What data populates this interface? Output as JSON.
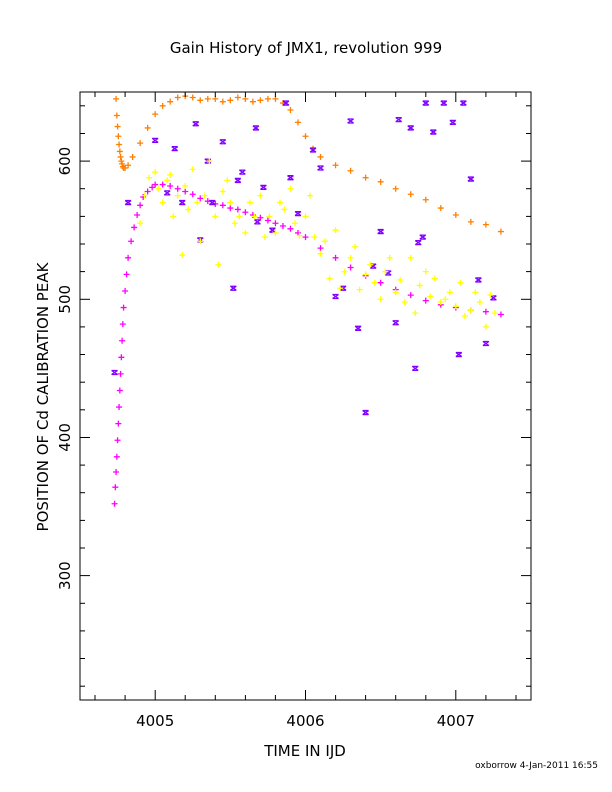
{
  "chart_data": {
    "type": "scatter",
    "title": "Gain History of JMX1, revolution 999",
    "xlabel": "TIME IN IJD",
    "ylabel": "POSITION OF Cd CALIBRATION PEAK",
    "xlim": [
      4004.5,
      4007.5
    ],
    "ylim": [
      210,
      650
    ],
    "xticks": [
      4005,
      4006,
      4007
    ],
    "xtick_labels": [
      "4005",
      "4006",
      "4007"
    ],
    "yticks": [
      300,
      400,
      500,
      600
    ],
    "ytick_labels": [
      "300",
      "400",
      "500",
      "600"
    ],
    "footer": "oxborrow  4-Jan-2011 16:55",
    "series": [
      {
        "marker": "+",
        "color": "#ff8000",
        "x": [
          4004.74,
          4004.745,
          4004.75,
          4004.755,
          4004.76,
          4004.765,
          4004.77,
          4004.775,
          4004.78,
          4004.785,
          4004.79,
          4004.8,
          4004.82,
          4004.85,
          4004.9,
          4004.95,
          4005.0,
          4005.05,
          4005.1,
          4005.15,
          4005.2,
          4005.25,
          4005.3,
          4005.35,
          4005.4,
          4005.45,
          4005.5,
          4005.55,
          4005.6,
          4005.65,
          4005.7,
          4005.75,
          4005.8,
          4005.85,
          4005.9,
          4005.95,
          4006.0,
          4006.05,
          4006.1,
          4006.2,
          4006.3,
          4006.4,
          4006.5,
          4006.6,
          4006.7,
          4006.8,
          4006.9,
          4007.0,
          4007.1,
          4007.2,
          4007.3
        ],
        "y": [
          645,
          633,
          625,
          618,
          612,
          607,
          603,
          600,
          598,
          596,
          595,
          595,
          597,
          603,
          613,
          624,
          634,
          640,
          643,
          646,
          647,
          646,
          644,
          645,
          645,
          643,
          644,
          646,
          645,
          643,
          644,
          645,
          645,
          642,
          637,
          628,
          618,
          609,
          603,
          597,
          593,
          588,
          585,
          580,
          576,
          572,
          566,
          561,
          556,
          554,
          549
        ]
      },
      {
        "marker": "+",
        "color": "#ff00ff",
        "x": [
          4004.73,
          4004.735,
          4004.74,
          4004.745,
          4004.75,
          4004.755,
          4004.76,
          4004.765,
          4004.77,
          4004.775,
          4004.78,
          4004.785,
          4004.79,
          4004.8,
          4004.81,
          4004.82,
          4004.84,
          4004.86,
          4004.88,
          4004.9,
          4004.92,
          4004.95,
          4004.98,
          4005.0,
          4005.05,
          4005.1,
          4005.15,
          4005.2,
          4005.25,
          4005.3,
          4005.35,
          4005.4,
          4005.45,
          4005.5,
          4005.55,
          4005.6,
          4005.65,
          4005.7,
          4005.75,
          4005.8,
          4005.85,
          4005.9,
          4005.95,
          4006.0,
          4006.1,
          4006.2,
          4006.3,
          4006.4,
          4006.5,
          4006.6,
          4006.7,
          4006.8,
          4006.9,
          4007.0,
          4007.1,
          4007.2,
          4007.3
        ],
        "y": [
          352,
          364,
          375,
          386,
          398,
          410,
          422,
          434,
          446,
          458,
          470,
          482,
          494,
          506,
          518,
          530,
          542,
          552,
          561,
          568,
          574,
          578,
          581,
          583,
          583,
          582,
          580,
          578,
          576,
          573,
          571,
          569,
          568,
          566,
          565,
          563,
          561,
          559,
          557,
          555,
          553,
          551,
          548,
          545,
          537,
          530,
          523,
          517,
          512,
          507,
          503,
          499,
          496,
          494,
          492,
          491,
          489
        ]
      },
      {
        "marker": "x",
        "color": "#8000ff",
        "x": [
          4004.73,
          4004.82,
          4005.0,
          4005.08,
          4005.13,
          4005.18,
          4005.27,
          4005.3,
          4005.35,
          4005.38,
          4005.45,
          4005.52,
          4005.55,
          4005.58,
          4005.67,
          4005.68,
          4005.72,
          4005.78,
          4005.87,
          4005.9,
          4005.95,
          4006.05,
          4006.1,
          4006.2,
          4006.25,
          4006.3,
          4006.35,
          4006.4,
          4006.45,
          4006.5,
          4006.55,
          4006.6,
          4006.62,
          4006.7,
          4006.73,
          4006.75,
          4006.78,
          4006.8,
          4006.85,
          4006.92,
          4006.98,
          4007.02,
          4007.05,
          4007.1,
          4007.15,
          4007.2,
          4007.25
        ],
        "y": [
          447,
          570,
          615,
          577,
          609,
          570,
          627,
          543,
          600,
          570,
          614,
          508,
          586,
          592,
          624,
          556,
          581,
          550,
          642,
          588,
          562,
          608,
          595,
          502,
          508,
          629,
          479,
          418,
          524,
          549,
          519,
          483,
          630,
          624,
          450,
          541,
          545,
          642,
          621,
          642,
          628,
          460,
          642,
          587,
          514,
          468,
          501
        ]
      },
      {
        "marker": "+",
        "color": "#ffff00",
        "x": [
          4004.9,
          4004.93,
          4004.96,
          4005.0,
          4005.02,
          4005.05,
          4005.08,
          4005.1,
          4005.12,
          4005.15,
          4005.18,
          4005.2,
          4005.22,
          4005.25,
          4005.28,
          4005.3,
          4005.33,
          4005.36,
          4005.4,
          4005.42,
          4005.45,
          4005.48,
          4005.5,
          4005.53,
          4005.56,
          4005.6,
          4005.63,
          4005.66,
          4005.7,
          4005.73,
          4005.76,
          4005.8,
          4005.83,
          4005.86,
          4005.9,
          4005.93,
          4005.96,
          4006.0,
          4006.03,
          4006.06,
          4006.1,
          4006.13,
          4006.16,
          4006.2,
          4006.23,
          4006.26,
          4006.3,
          4006.33,
          4006.36,
          4006.4,
          4006.43,
          4006.46,
          4006.5,
          4006.53,
          4006.56,
          4006.6,
          4006.63,
          4006.66,
          4006.7,
          4006.73,
          4006.76,
          4006.8,
          4006.83,
          4006.86,
          4006.9,
          4006.93,
          4006.96,
          4007.0,
          4007.03,
          4007.06,
          4007.1,
          4007.13,
          4007.16,
          4007.2,
          4007.23,
          4007.26
        ],
        "y": [
          555,
          575,
          588,
          592,
          580,
          570,
          586,
          590,
          560,
          575,
          532,
          582,
          565,
          594,
          570,
          542,
          575,
          600,
          560,
          525,
          578,
          586,
          570,
          555,
          560,
          548,
          570,
          560,
          575,
          545,
          560,
          548,
          570,
          565,
          580,
          555,
          546,
          560,
          575,
          545,
          533,
          542,
          515,
          550,
          508,
          520,
          530,
          538,
          507,
          518,
          525,
          512,
          500,
          520,
          530,
          505,
          514,
          498,
          530,
          490,
          510,
          520,
          502,
          515,
          498,
          500,
          505,
          495,
          512,
          488,
          492,
          505,
          498,
          480,
          503,
          490
        ]
      }
    ]
  }
}
